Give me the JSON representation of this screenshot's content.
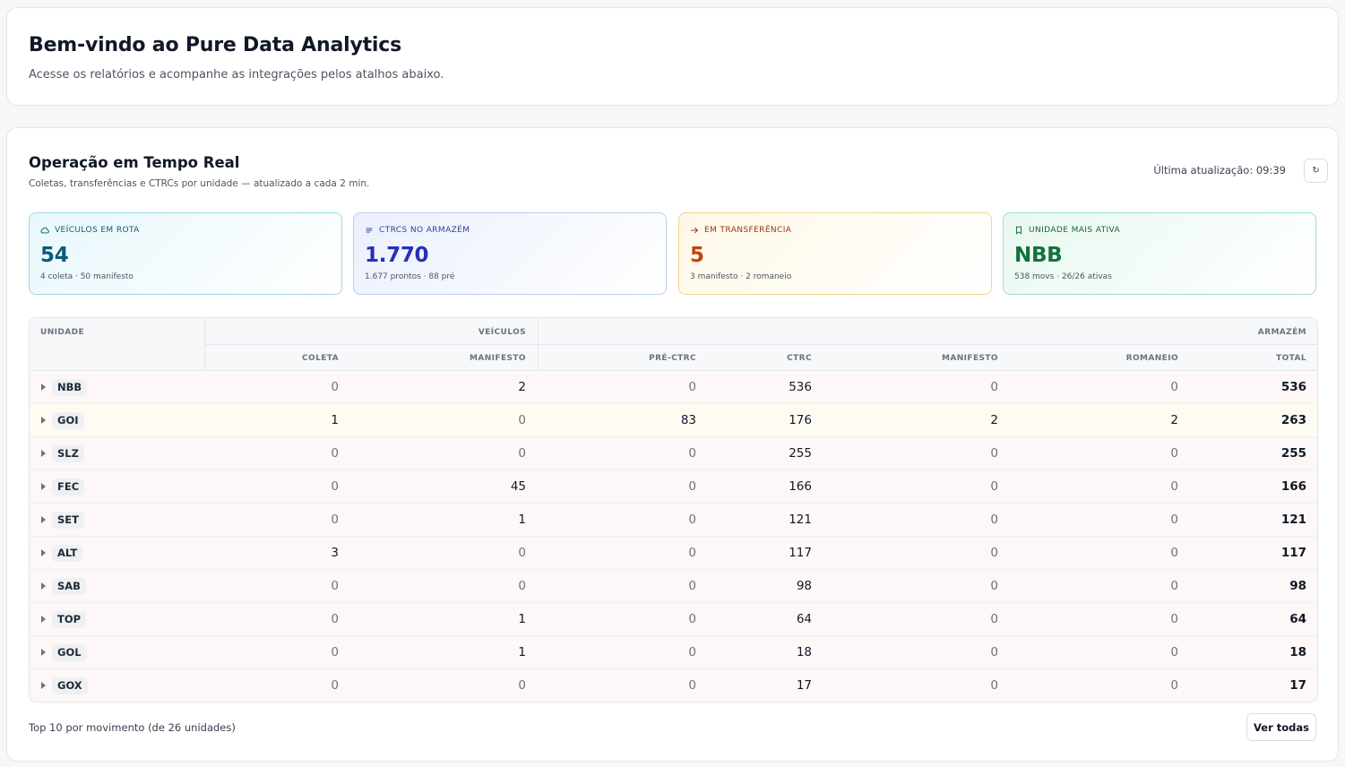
{
  "welcome": {
    "title": "Bem-vindo ao Pure Data Analytics",
    "subtitle": "Acesse os relatórios e acompanhe as integrações pelos atalhos abaixo."
  },
  "ops": {
    "title": "Operação em Tempo Real",
    "subtitle": "Coletas, transferências e CTRCs por unidade — atualizado a cada 2 min.",
    "updated": "Última atualização: 09:39",
    "refresh_icon": "↻"
  },
  "kpis": [
    {
      "label": "VEÍCULOS EM ROTA",
      "value": "54",
      "sub": "4 coleta · 50 manifesto",
      "icon": "cloud-icon",
      "color": "#0b5b78"
    },
    {
      "label": "CTRCS NO ARMAZÉM",
      "value": "1.770",
      "sub": "1.677 prontos · 88 pré",
      "icon": "list-icon",
      "color": "#2730b5"
    },
    {
      "label": "EM TRANSFERÊNCIA",
      "value": "5",
      "sub": "3 manifesto · 2 romaneio",
      "icon": "arrow-right-icon",
      "color": "#c2410c"
    },
    {
      "label": "UNIDADE MAIS ATIVA",
      "value": "NBB",
      "sub": "538 movs · 26/26 ativas",
      "icon": "bookmark-icon",
      "color": "#15703f"
    }
  ],
  "table": {
    "headers": {
      "unidade": "UNIDADE",
      "veiculos": "VEÍCULOS",
      "armazem": "ARMAZÉM",
      "coleta": "COLETA",
      "manifesto_v": "MANIFESTO",
      "pre_ctrc": "PRÉ-CTRC",
      "ctrc": "CTRC",
      "manifesto_a": "MANIFESTO",
      "romaneio": "ROMANEIO",
      "total": "TOTAL"
    },
    "rows": [
      {
        "unit": "NBB",
        "coleta": "0",
        "manifesto_v": "2",
        "pre_ctrc": "0",
        "ctrc": "536",
        "manifesto_a": "0",
        "romaneio": "0",
        "total": "536",
        "tone": "red"
      },
      {
        "unit": "GOI",
        "coleta": "1",
        "manifesto_v": "0",
        "pre_ctrc": "83",
        "ctrc": "176",
        "manifesto_a": "2",
        "romaneio": "2",
        "total": "263",
        "tone": "yel"
      },
      {
        "unit": "SLZ",
        "coleta": "0",
        "manifesto_v": "0",
        "pre_ctrc": "0",
        "ctrc": "255",
        "manifesto_a": "0",
        "romaneio": "0",
        "total": "255",
        "tone": "red"
      },
      {
        "unit": "FEC",
        "coleta": "0",
        "manifesto_v": "45",
        "pre_ctrc": "0",
        "ctrc": "166",
        "manifesto_a": "0",
        "romaneio": "0",
        "total": "166",
        "tone": "red"
      },
      {
        "unit": "SET",
        "coleta": "0",
        "manifesto_v": "1",
        "pre_ctrc": "0",
        "ctrc": "121",
        "manifesto_a": "0",
        "romaneio": "0",
        "total": "121",
        "tone": "red"
      },
      {
        "unit": "ALT",
        "coleta": "3",
        "manifesto_v": "0",
        "pre_ctrc": "0",
        "ctrc": "117",
        "manifesto_a": "0",
        "romaneio": "0",
        "total": "117",
        "tone": "red"
      },
      {
        "unit": "SAB",
        "coleta": "0",
        "manifesto_v": "0",
        "pre_ctrc": "0",
        "ctrc": "98",
        "manifesto_a": "0",
        "romaneio": "0",
        "total": "98",
        "tone": "red"
      },
      {
        "unit": "TOP",
        "coleta": "0",
        "manifesto_v": "1",
        "pre_ctrc": "0",
        "ctrc": "64",
        "manifesto_a": "0",
        "romaneio": "0",
        "total": "64",
        "tone": "red"
      },
      {
        "unit": "GOL",
        "coleta": "0",
        "manifesto_v": "1",
        "pre_ctrc": "0",
        "ctrc": "18",
        "manifesto_a": "0",
        "romaneio": "0",
        "total": "18",
        "tone": "red"
      },
      {
        "unit": "GOX",
        "coleta": "0",
        "manifesto_v": "0",
        "pre_ctrc": "0",
        "ctrc": "17",
        "manifesto_a": "0",
        "romaneio": "0",
        "total": "17",
        "tone": "red"
      }
    ]
  },
  "footer": {
    "note": "Top 10 por movimento (de 26 unidades)",
    "view_all": "Ver todas"
  }
}
